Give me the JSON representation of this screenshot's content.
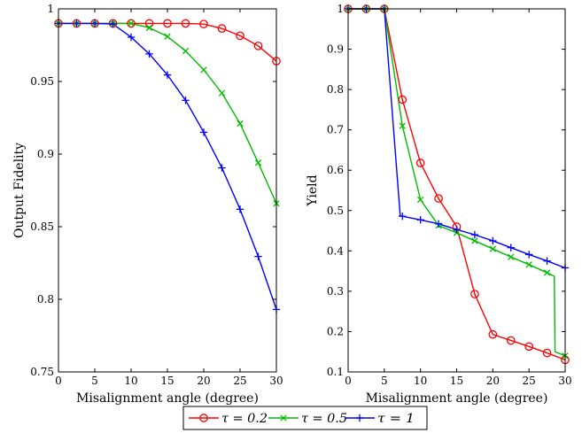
{
  "chart_data": [
    {
      "type": "line",
      "title": "",
      "xlabel": "Misalignment angle (degree)",
      "ylabel": "Output Fidelity",
      "xlim": [
        0,
        30
      ],
      "ylim": [
        0.75,
        1.0
      ],
      "xticks": [
        0,
        5,
        10,
        15,
        20,
        25,
        30
      ],
      "yticks": [
        0.75,
        0.8,
        0.85,
        0.9,
        0.95,
        1.0
      ],
      "xtick_labels": [
        "0",
        "5",
        "10",
        "15",
        "20",
        "25",
        "30"
      ],
      "ytick_labels": [
        "0.75",
        "0.8",
        "0.85",
        "0.9",
        "0.95",
        "1"
      ],
      "grid": false,
      "series": [
        {
          "name": "τ = 0.2",
          "color": "#ff0000",
          "marker": "circle",
          "x": [
            0,
            2.5,
            5,
            7.5,
            10,
            12.5,
            15,
            17.5,
            20,
            22.5,
            25,
            27.5,
            30
          ],
          "y": [
            0.99,
            0.99,
            0.99,
            0.99,
            0.99,
            0.99,
            0.99,
            0.99,
            0.9895,
            0.9865,
            0.9815,
            0.9745,
            0.964
          ]
        },
        {
          "name": "τ = 0.5",
          "color": "#00bb00",
          "marker": "x",
          "x": [
            0,
            2.5,
            5,
            7.5,
            10,
            12.5,
            15,
            17.5,
            20,
            22.5,
            25,
            27.5,
            30
          ],
          "y": [
            0.99,
            0.99,
            0.99,
            0.99,
            0.99,
            0.987,
            0.981,
            0.971,
            0.958,
            0.942,
            0.921,
            0.894,
            0.866
          ]
        },
        {
          "name": "τ = 1",
          "color": "#0000ff",
          "marker": "plus",
          "x": [
            0,
            2.5,
            5,
            7.5,
            10,
            12.5,
            15,
            17.5,
            20,
            22.5,
            25,
            27.5,
            30
          ],
          "y": [
            0.99,
            0.99,
            0.99,
            0.9895,
            0.9805,
            0.969,
            0.9545,
            0.937,
            0.915,
            0.8905,
            0.862,
            0.8295,
            0.793
          ]
        }
      ]
    },
    {
      "type": "line",
      "title": "",
      "xlabel": "Misalignment angle (degree)",
      "ylabel": "Yield",
      "xlim": [
        0,
        30
      ],
      "ylim": [
        0.1,
        1.0
      ],
      "xticks": [
        0,
        5,
        10,
        15,
        20,
        25,
        30
      ],
      "yticks": [
        0.1,
        0.2,
        0.3,
        0.4,
        0.5,
        0.6,
        0.7,
        0.8,
        0.9,
        1.0
      ],
      "xtick_labels": [
        "0",
        "5",
        "10",
        "15",
        "20",
        "25",
        "30"
      ],
      "ytick_labels": [
        "0.1",
        "0.2",
        "0.3",
        "0.4",
        "0.5",
        "0.6",
        "0.7",
        "0.8",
        "0.9",
        "1"
      ],
      "grid": false,
      "series": [
        {
          "name": "τ = 0.2",
          "color": "#ff0000",
          "marker": "circle",
          "line": {
            "x": [
              0,
              5,
              7.5,
              10,
              12.5,
              15,
              16.5,
              17.5,
              20,
              22.5,
              25,
              27.5,
              30
            ],
            "y": [
              1.0,
              1.0,
              0.775,
              0.618,
              0.53,
              0.46,
              0.36,
              0.293,
              0.193,
              0.178,
              0.163,
              0.147,
              0.13
            ]
          },
          "markers": {
            "x": [
              0,
              2.5,
              5,
              7.5,
              10,
              12.5,
              15,
              17.5,
              20,
              22.5,
              25,
              27.5,
              30
            ],
            "y": [
              1.0,
              1.0,
              1.0,
              0.775,
              0.618,
              0.53,
              0.46,
              0.293,
              0.193,
              0.178,
              0.163,
              0.147,
              0.13
            ]
          }
        },
        {
          "name": "τ = 0.5",
          "color": "#00bb00",
          "marker": "x",
          "line": {
            "x": [
              0,
              5,
              7.5,
              10,
              12.5,
              15,
              17.5,
              20,
              22.5,
              25,
              27.5,
              28.5,
              28.6,
              30
            ],
            "y": [
              1.0,
              1.0,
              0.71,
              0.527,
              0.463,
              0.445,
              0.425,
              0.405,
              0.385,
              0.366,
              0.346,
              0.337,
              0.15,
              0.14
            ]
          },
          "markers": {
            "x": [
              0,
              2.5,
              5,
              7.5,
              10,
              12.5,
              15,
              17.5,
              20,
              22.5,
              25,
              27.5,
              30
            ],
            "y": [
              1.0,
              1.0,
              1.0,
              0.71,
              0.527,
              0.463,
              0.445,
              0.425,
              0.405,
              0.385,
              0.366,
              0.346,
              0.14
            ]
          }
        },
        {
          "name": "τ = 1",
          "color": "#0000ff",
          "marker": "plus",
          "line": {
            "x": [
              0,
              5,
              7.2,
              10,
              12.5,
              15,
              17.5,
              20,
              22.5,
              25,
              27.5,
              30
            ],
            "y": [
              1.0,
              1.0,
              0.487,
              0.477,
              0.467,
              0.453,
              0.44,
              0.425,
              0.408,
              0.391,
              0.375,
              0.358
            ]
          },
          "markers": {
            "x": [
              0,
              2.5,
              5,
              7.5,
              10,
              12.5,
              15,
              17.5,
              20,
              22.5,
              25,
              27.5,
              30
            ],
            "y": [
              1.0,
              1.0,
              1.0,
              0.486,
              0.477,
              0.467,
              0.453,
              0.44,
              0.425,
              0.408,
              0.391,
              0.375,
              0.358
            ]
          }
        }
      ]
    }
  ],
  "legend": {
    "placement": "bottom-center",
    "entries": [
      {
        "label": "τ = 0.2",
        "color": "#ff0000",
        "marker": "circle"
      },
      {
        "label": "τ = 0.5",
        "color": "#00bb00",
        "marker": "x"
      },
      {
        "label": "τ = 1",
        "color": "#0000ff",
        "marker": "plus"
      }
    ]
  }
}
